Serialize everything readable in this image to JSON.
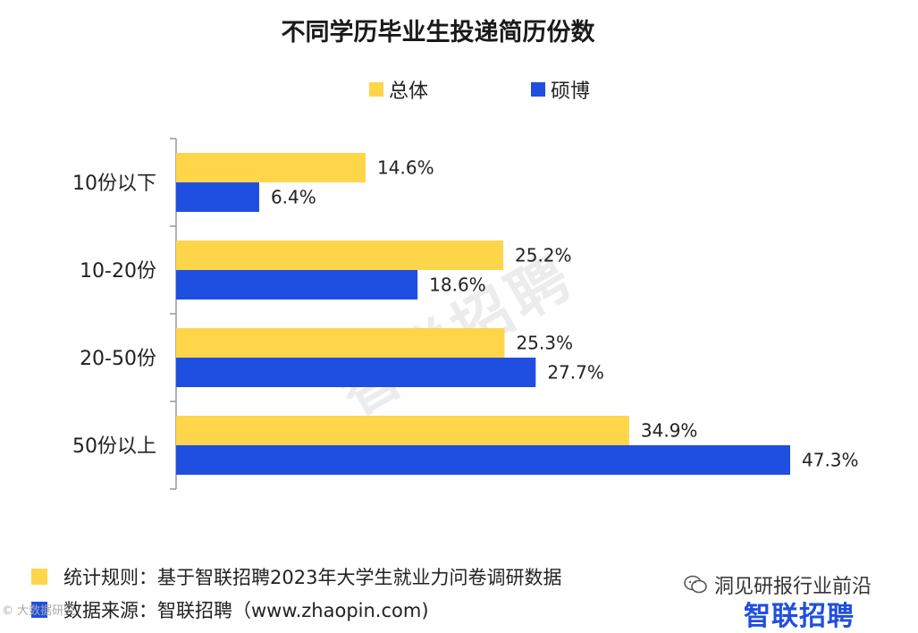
{
  "chart_data": {
    "type": "bar",
    "orientation": "horizontal",
    "title": "不同学历毕业生投递简历份数",
    "categories": [
      "10份以下",
      "10-20份",
      "20-50份",
      "50份以上"
    ],
    "series": [
      {
        "name": "总体",
        "color": "#ffd54a",
        "values": [
          14.6,
          25.2,
          25.3,
          34.9
        ],
        "labels": [
          "14.6%",
          "25.2%",
          "25.3%",
          "34.9%"
        ]
      },
      {
        "name": "硕博",
        "color": "#1f4fe0",
        "values": [
          6.4,
          18.6,
          27.7,
          47.3
        ],
        "labels": [
          "6.4%",
          "18.6%",
          "27.7%",
          "47.3%"
        ]
      }
    ],
    "xlim": [
      0,
      50
    ],
    "legend_position": "top",
    "grid": false
  },
  "footer": {
    "rule_label": "统计规则：基于智联招聘2023年大学生就业力问卷调研数据",
    "source_label": "数据来源：智联招聘（www.zhaopin.com)",
    "rule_color": "#ffd54a",
    "source_color": "#1f4fe0"
  },
  "branding": {
    "logo_text": "智联招聘",
    "watermark": "智联招聘",
    "wechat_account": "洞见研报行业前沿",
    "corner_mark": "© 大数据研究"
  }
}
